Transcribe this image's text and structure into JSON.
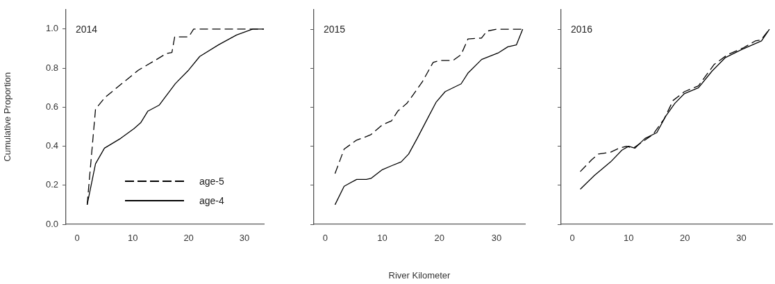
{
  "chart_data": [
    {
      "type": "line",
      "title": "2014",
      "ylabel": "Cumulative Proportion",
      "xlim": [
        -2,
        33.5
      ],
      "xticks": [
        0,
        10,
        20,
        30
      ],
      "ylim": [
        0,
        1.1
      ],
      "yticks": [
        {
          "value": 0,
          "label": "0.0"
        },
        {
          "value": 0.2,
          "label": "0.2"
        },
        {
          "value": 0.4,
          "label": "0.4"
        },
        {
          "value": 0.6,
          "label": "0.6"
        },
        {
          "value": 0.8,
          "label": "0.8"
        },
        {
          "value": 1,
          "label": "1.0"
        }
      ],
      "marker": "none",
      "legend": "bottom right",
      "series": [
        {
          "name": "age-5",
          "color": "#000000",
          "line_style": "dashed",
          "x": [
            1.8,
            3.3,
            5,
            8,
            11,
            14,
            16,
            17,
            17.5,
            20,
            20.9,
            33.5
          ],
          "values": [
            0.1,
            0.59,
            0.65,
            0.72,
            0.79,
            0.84,
            0.875,
            0.88,
            0.96,
            0.96,
            1.0,
            1.0
          ]
        },
        {
          "name": "age-4",
          "color": "#000000",
          "line_style": "solid",
          "x": [
            1.8,
            3.3,
            4.9,
            7.8,
            10.2,
            11.4,
            12.7,
            14.7,
            17.6,
            20,
            22,
            25.4,
            28.6,
            31.5,
            33.5
          ],
          "values": [
            0.1,
            0.31,
            0.39,
            0.44,
            0.49,
            0.52,
            0.58,
            0.61,
            0.72,
            0.79,
            0.86,
            0.92,
            0.97,
            1.0,
            1.0
          ]
        }
      ]
    },
    {
      "type": "line",
      "title": "2015",
      "xlabel": "River Kilometer",
      "xlim": [
        -2,
        35
      ],
      "xticks": [
        0,
        10,
        20,
        30
      ],
      "ylim": [
        0,
        1.1
      ],
      "yticks": [
        0,
        0.2,
        0.4,
        0.6,
        0.8,
        1
      ],
      "tick_labels": "x",
      "marker": "none",
      "series": [
        {
          "color": "#000000",
          "line_style": "dashed",
          "x": [
            1.7,
            3.3,
            5.4,
            7.2,
            8,
            10,
            11.6,
            12.7,
            14.3,
            15.3,
            17,
            18.9,
            20,
            22.4,
            23.8,
            25,
            27.4,
            28.3,
            30,
            34.4
          ],
          "values": [
            0.26,
            0.385,
            0.43,
            0.45,
            0.46,
            0.51,
            0.53,
            0.58,
            0.62,
            0.66,
            0.73,
            0.83,
            0.84,
            0.84,
            0.87,
            0.95,
            0.955,
            0.99,
            1.0,
            1.0
          ]
        },
        {
          "color": "#000000",
          "line_style": "solid",
          "x": [
            1.7,
            3.3,
            5.5,
            7.2,
            8,
            10,
            11.6,
            13.3,
            14.6,
            16.1,
            17.7,
            19.4,
            21,
            23.8,
            25,
            27.4,
            30.4,
            32,
            33.5,
            34.6
          ],
          "values": [
            0.1,
            0.195,
            0.23,
            0.23,
            0.235,
            0.28,
            0.3,
            0.32,
            0.36,
            0.44,
            0.53,
            0.625,
            0.68,
            0.72,
            0.775,
            0.845,
            0.88,
            0.91,
            0.92,
            1.0
          ]
        }
      ]
    },
    {
      "type": "line",
      "title": "2016",
      "xlim": [
        -2,
        35.5
      ],
      "xticks": [
        0,
        10,
        20,
        30
      ],
      "ylim": [
        0,
        1.1
      ],
      "yticks": [
        0,
        0.2,
        0.4,
        0.6,
        0.8,
        1
      ],
      "tick_labels": "x",
      "marker": "none",
      "series": [
        {
          "color": "#000000",
          "line_style": "dashed",
          "x": [
            1.4,
            3.4,
            4.6,
            6.8,
            8.3,
            9.6,
            10.8,
            14.3,
            16.3,
            17.9,
            19.9,
            22.4,
            25.2,
            27.6,
            30.4,
            32.5,
            33.5,
            35
          ],
          "values": [
            0.27,
            0.33,
            0.36,
            0.37,
            0.39,
            0.4,
            0.39,
            0.46,
            0.54,
            0.635,
            0.68,
            0.71,
            0.82,
            0.87,
            0.905,
            0.94,
            0.945,
            1.0
          ]
        },
        {
          "color": "#000000",
          "line_style": "solid",
          "x": [
            1.4,
            3.9,
            6.8,
            8.8,
            10,
            11.1,
            12.9,
            15,
            16.6,
            18.2,
            19.9,
            22.4,
            24.8,
            27.2,
            30,
            33.6,
            35
          ],
          "values": [
            0.18,
            0.25,
            0.32,
            0.38,
            0.4,
            0.39,
            0.44,
            0.47,
            0.555,
            0.62,
            0.67,
            0.7,
            0.785,
            0.855,
            0.895,
            0.94,
            1.0
          ]
        }
      ]
    }
  ]
}
